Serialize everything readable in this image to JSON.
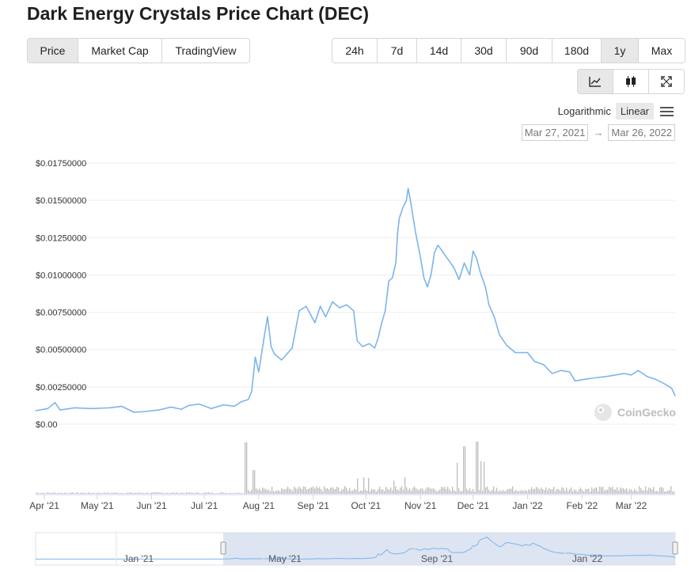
{
  "title": "Dark Energy Crystals Price Chart (DEC)",
  "tabs": [
    {
      "label": "Price",
      "active": true
    },
    {
      "label": "Market Cap",
      "active": false
    },
    {
      "label": "TradingView",
      "active": false
    }
  ],
  "ranges": [
    {
      "label": "24h",
      "active": false
    },
    {
      "label": "7d",
      "active": false
    },
    {
      "label": "14d",
      "active": false
    },
    {
      "label": "30d",
      "active": false
    },
    {
      "label": "90d",
      "active": false
    },
    {
      "label": "180d",
      "active": false
    },
    {
      "label": "1y",
      "active": true
    },
    {
      "label": "Max",
      "active": false
    }
  ],
  "tools": [
    {
      "icon": "line-chart-icon",
      "active": true
    },
    {
      "icon": "candlestick-icon",
      "active": false
    },
    {
      "icon": "fullscreen-icon",
      "active": false
    }
  ],
  "scale": {
    "log_label": "Logarithmic",
    "linear_label": "Linear",
    "active": "Linear"
  },
  "date_range": {
    "from": "Mar 27, 2021",
    "arrow": "→",
    "to": "Mar 26, 2022"
  },
  "watermark": "CoinGecko",
  "colors": {
    "line": "#7cb5ec",
    "volume": "#bdbdbd",
    "navigator_fill": "#d7dff0"
  },
  "chart_data": {
    "type": "line",
    "ylim": [
      0,
      0.0175
    ],
    "yticks": [
      "$0.00",
      "$0.00250000",
      "$0.00500000",
      "$0.00750000",
      "$0.01000000",
      "$0.01250000",
      "$0.01500000",
      "$0.01750000"
    ],
    "ytick_values": [
      0,
      0.0025,
      0.005,
      0.0075,
      0.01,
      0.0125,
      0.015,
      0.0175
    ],
    "xticks": [
      {
        "label": "Apr '21",
        "date": "2021-04-01"
      },
      {
        "label": "May '21",
        "date": "2021-05-01"
      },
      {
        "label": "Jun '21",
        "date": "2021-06-01"
      },
      {
        "label": "Jul '21",
        "date": "2021-07-01"
      },
      {
        "label": "Aug '21",
        "date": "2021-08-01"
      },
      {
        "label": "Sep '21",
        "date": "2021-09-01"
      },
      {
        "label": "Oct '21",
        "date": "2021-10-01"
      },
      {
        "label": "Nov '21",
        "date": "2021-11-01"
      },
      {
        "label": "Dec '21",
        "date": "2021-12-01"
      },
      {
        "label": "Jan '22",
        "date": "2022-01-01"
      },
      {
        "label": "Feb '22",
        "date": "2022-02-01"
      },
      {
        "label": "Mar '22",
        "date": "2022-03-01"
      }
    ],
    "x_range": [
      "2021-03-27",
      "2022-03-26"
    ],
    "grid": true,
    "series": [
      {
        "points": [
          [
            "2021-03-27",
            0.0009
          ],
          [
            "2021-04-03",
            0.00105
          ],
          [
            "2021-04-07",
            0.00145
          ],
          [
            "2021-04-10",
            0.00095
          ],
          [
            "2021-04-18",
            0.0011
          ],
          [
            "2021-04-28",
            0.00105
          ],
          [
            "2021-05-08",
            0.0011
          ],
          [
            "2021-05-15",
            0.0012
          ],
          [
            "2021-05-22",
            0.0008
          ],
          [
            "2021-05-28",
            0.00085
          ],
          [
            "2021-06-05",
            0.00095
          ],
          [
            "2021-06-12",
            0.00115
          ],
          [
            "2021-06-18",
            0.001
          ],
          [
            "2021-06-22",
            0.00125
          ],
          [
            "2021-06-28",
            0.00135
          ],
          [
            "2021-07-05",
            0.00105
          ],
          [
            "2021-07-12",
            0.0013
          ],
          [
            "2021-07-18",
            0.0012
          ],
          [
            "2021-07-22",
            0.0015
          ],
          [
            "2021-07-26",
            0.00165
          ],
          [
            "2021-07-28",
            0.0022
          ],
          [
            "2021-07-30",
            0.0045
          ],
          [
            "2021-08-01",
            0.0035
          ],
          [
            "2021-08-04",
            0.0058
          ],
          [
            "2021-08-06",
            0.0072
          ],
          [
            "2021-08-08",
            0.0052
          ],
          [
            "2021-08-10",
            0.0047
          ],
          [
            "2021-08-14",
            0.0043
          ],
          [
            "2021-08-20",
            0.0051
          ],
          [
            "2021-08-24",
            0.0076
          ],
          [
            "2021-08-28",
            0.0079
          ],
          [
            "2021-09-02",
            0.0068
          ],
          [
            "2021-09-05",
            0.0079
          ],
          [
            "2021-09-08",
            0.0072
          ],
          [
            "2021-09-12",
            0.0082
          ],
          [
            "2021-09-16",
            0.0078
          ],
          [
            "2021-09-20",
            0.008
          ],
          [
            "2021-09-24",
            0.0076
          ],
          [
            "2021-09-26",
            0.0056
          ],
          [
            "2021-09-29",
            0.0052
          ],
          [
            "2021-10-03",
            0.0054
          ],
          [
            "2021-10-06",
            0.0051
          ],
          [
            "2021-10-08",
            0.0058
          ],
          [
            "2021-10-10",
            0.0068
          ],
          [
            "2021-10-12",
            0.0076
          ],
          [
            "2021-10-14",
            0.0096
          ],
          [
            "2021-10-16",
            0.0098
          ],
          [
            "2021-10-18",
            0.0108
          ],
          [
            "2021-10-19",
            0.0128
          ],
          [
            "2021-10-20",
            0.0138
          ],
          [
            "2021-10-22",
            0.0145
          ],
          [
            "2021-10-24",
            0.015
          ],
          [
            "2021-10-25",
            0.0158
          ],
          [
            "2021-10-26",
            0.0152
          ],
          [
            "2021-10-27",
            0.0145
          ],
          [
            "2021-10-29",
            0.013
          ],
          [
            "2021-11-01",
            0.0112
          ],
          [
            "2021-11-03",
            0.0098
          ],
          [
            "2021-11-05",
            0.0092
          ],
          [
            "2021-11-07",
            0.01
          ],
          [
            "2021-11-09",
            0.0115
          ],
          [
            "2021-11-11",
            0.012
          ],
          [
            "2021-11-14",
            0.0115
          ],
          [
            "2021-11-17",
            0.011
          ],
          [
            "2021-11-20",
            0.0105
          ],
          [
            "2021-11-23",
            0.0097
          ],
          [
            "2021-11-26",
            0.0108
          ],
          [
            "2021-11-29",
            0.01
          ],
          [
            "2021-12-01",
            0.0116
          ],
          [
            "2021-12-03",
            0.0111
          ],
          [
            "2021-12-05",
            0.0102
          ],
          [
            "2021-12-08",
            0.0092
          ],
          [
            "2021-12-10",
            0.008
          ],
          [
            "2021-12-13",
            0.0072
          ],
          [
            "2021-12-16",
            0.006
          ],
          [
            "2021-12-20",
            0.0053
          ],
          [
            "2021-12-25",
            0.0048
          ],
          [
            "2022-01-01",
            0.0048
          ],
          [
            "2022-01-05",
            0.0042
          ],
          [
            "2022-01-10",
            0.004
          ],
          [
            "2022-01-15",
            0.0034
          ],
          [
            "2022-01-20",
            0.0036
          ],
          [
            "2022-01-25",
            0.0035
          ],
          [
            "2022-01-28",
            0.0029
          ],
          [
            "2022-02-02",
            0.003
          ],
          [
            "2022-02-08",
            0.0031
          ],
          [
            "2022-02-15",
            0.0032
          ],
          [
            "2022-02-20",
            0.0033
          ],
          [
            "2022-02-25",
            0.0034
          ],
          [
            "2022-03-01",
            0.0033
          ],
          [
            "2022-03-05",
            0.0036
          ],
          [
            "2022-03-10",
            0.0032
          ],
          [
            "2022-03-15",
            0.003
          ],
          [
            "2022-03-20",
            0.0027
          ],
          [
            "2022-03-24",
            0.0024
          ],
          [
            "2022-03-26",
            0.0019
          ]
        ]
      }
    ],
    "navigator": {
      "xticks": [
        "Jan '21",
        "May '21",
        "Sep '21",
        "Jan '22"
      ]
    }
  }
}
